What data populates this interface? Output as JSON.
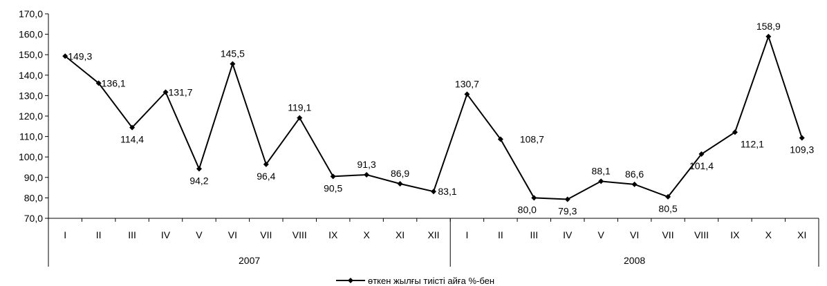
{
  "chart_data": {
    "type": "line",
    "categories": [
      "I",
      "II",
      "III",
      "IV",
      "V",
      "VI",
      "VII",
      "VIII",
      "IX",
      "X",
      "XI",
      "XII",
      "I",
      "II",
      "III",
      "IV",
      "V",
      "VI",
      "VII",
      "VIII",
      "IX",
      "X",
      "XI"
    ],
    "groups": [
      {
        "label": "2007",
        "start": 0,
        "end": 11
      },
      {
        "label": "2008",
        "start": 12,
        "end": 22
      }
    ],
    "series": [
      {
        "name": "өткен жылғы тиісті айға %-бен",
        "values": [
          149.3,
          136.1,
          114.4,
          131.7,
          94.2,
          145.5,
          96.4,
          119.1,
          90.5,
          91.3,
          86.9,
          83.1,
          130.7,
          108.7,
          80.0,
          79.3,
          88.1,
          86.6,
          80.5,
          101.4,
          112.1,
          158.9,
          109.3
        ],
        "labels": [
          "149,3",
          "136,1",
          "114,4",
          "131,7",
          "94,2",
          "145,5",
          "96,4",
          "119,1",
          "90,5",
          "91,3",
          "86,9",
          "83,1",
          "130,7",
          "108,7",
          "80,0",
          "79,3",
          "88,1",
          "86,6",
          "80,5",
          "101,4",
          "112,1",
          "158,9",
          "109,3"
        ],
        "color": "#000000"
      }
    ],
    "ylim": [
      70,
      170
    ],
    "yticks": [
      "70,0",
      "80,0",
      "90,0",
      "100,0",
      "110,0",
      "120,0",
      "130,0",
      "140,0",
      "150,0",
      "160,0",
      "170,0"
    ],
    "grid": false,
    "legend_position": "bottom-center"
  }
}
